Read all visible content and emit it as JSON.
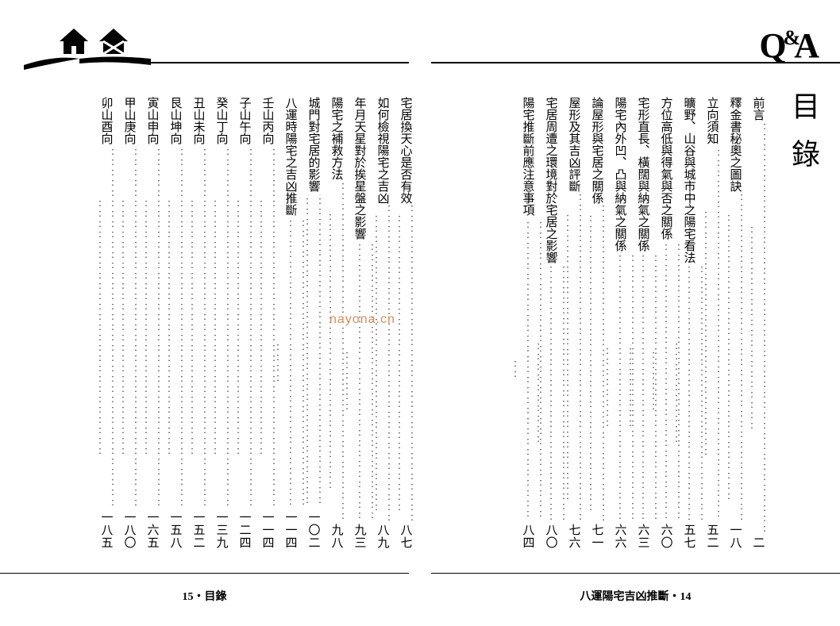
{
  "heading": "目錄",
  "qa_logo": {
    "q": "Q",
    "amp": "&",
    "a": "A"
  },
  "watermark": "nayona.cn",
  "footer_left": "15・目錄",
  "footer_right": "八運陽宅吉凶推斷・14",
  "colors": {
    "text": "#000000",
    "background": "#ffffff",
    "watermark": "#d98c5a",
    "rule": "#000000"
  },
  "toc_right": [
    {
      "title": "前言",
      "page": "二"
    },
    {
      "title": "釋金書秘奧之圖訣",
      "page": "一八"
    },
    {
      "title": "立向須知",
      "page": "五二"
    },
    {
      "title": "曠野、山谷與城市中之陽宅看法",
      "page": "五七"
    },
    {
      "title": "方位高低與得氣與否之關係",
      "page": "六〇"
    },
    {
      "title": "宅形直長、橫闊與納氣之關係",
      "page": "六三"
    },
    {
      "title": "陽宅內外凹、凸與納氣之關係",
      "page": "六六"
    },
    {
      "title": "論屋形與宅居之關係",
      "page": "七一"
    },
    {
      "title": "屋形及其吉凶評斷",
      "page": "七六"
    },
    {
      "title": "宅居周遭之環境對於宅居之影響",
      "page": "八〇"
    },
    {
      "title": "陽宅推斷前應注意事項",
      "page": "八四"
    }
  ],
  "toc_left": [
    {
      "title": "宅居換天心是否有效",
      "page": "八七"
    },
    {
      "title": "如何檢視陽宅之吉凶",
      "page": "八九"
    },
    {
      "title": "年月天星對於挨星盤之影響",
      "page": "九三"
    },
    {
      "title": "陽宅之補救方法",
      "page": "九八"
    },
    {
      "title": "城門對宅居的影響",
      "page": "一〇二"
    },
    {
      "title": "八運時陽宅之吉凶推斷",
      "page": "一一四"
    },
    {
      "title": "壬山丙向",
      "page": "一一四"
    },
    {
      "title": "子山午向",
      "page": "一二四"
    },
    {
      "title": "癸山丁向",
      "page": "一三九"
    },
    {
      "title": "丑山未向",
      "page": "一五二"
    },
    {
      "title": "艮山坤向",
      "page": "一五八"
    },
    {
      "title": "寅山申向",
      "page": "一六五"
    },
    {
      "title": "甲山庚向",
      "page": "一八〇"
    },
    {
      "title": "卯山酉向",
      "page": "一八五"
    }
  ]
}
